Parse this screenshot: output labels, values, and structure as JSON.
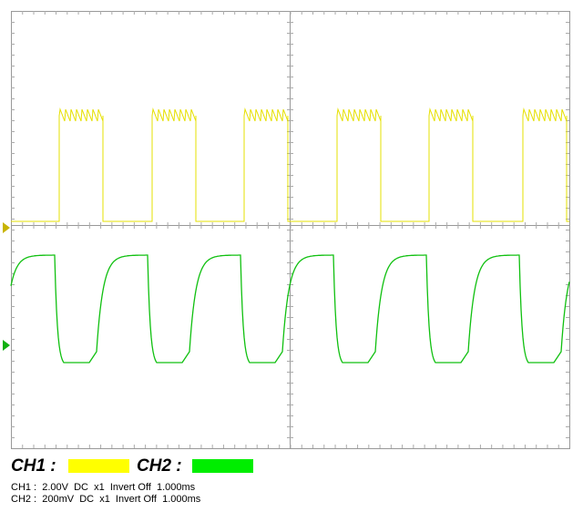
{
  "legend": {
    "ch1_label": "CH1 :",
    "ch2_label": "CH2 :"
  },
  "info": [
    "CH1 :  2.00V  DC  x1  Invert Off  1.000ms",
    "CH2 :  200mV  DC  x1  Invert Off  1.000ms"
  ]
}
